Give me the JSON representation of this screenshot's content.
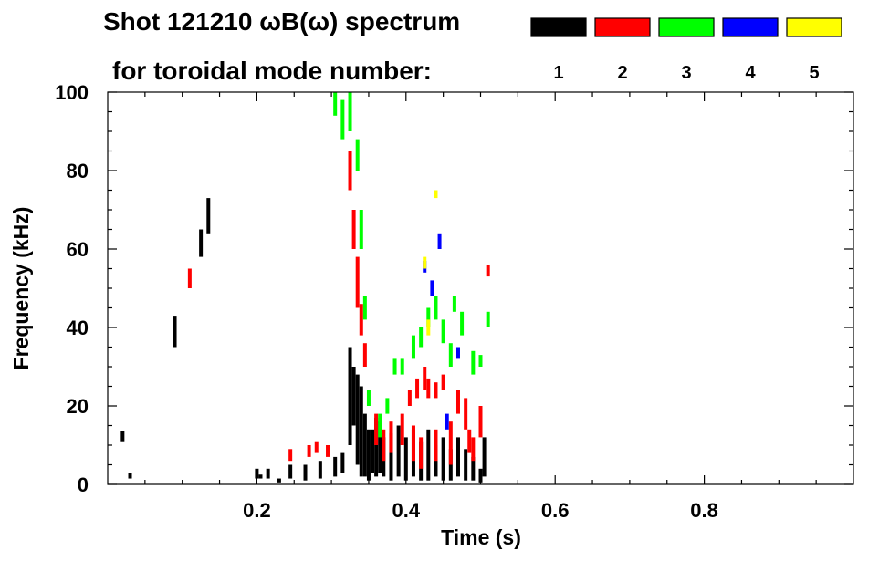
{
  "header": {
    "title": "Shot 121210 ωB(ω) spectrum",
    "subtitle": "for toroidal mode number:"
  },
  "chart_data": {
    "type": "scatter",
    "title": "Shot 121210 ωB(ω) spectrum",
    "subtitle": "for toroidal mode number:",
    "xlabel": "Time (s)",
    "ylabel": "Frequency (kHz)",
    "xlim": [
      0.0,
      1.0
    ],
    "ylim": [
      0,
      100
    ],
    "x_ticks": [
      0.2,
      0.4,
      0.6,
      0.8
    ],
    "x_tick_labels": [
      "0.2",
      "0.4",
      "0.6",
      "0.8"
    ],
    "y_ticks": [
      0,
      20,
      40,
      60,
      80,
      100
    ],
    "y_tick_labels": [
      "0",
      "20",
      "40",
      "60",
      "80",
      "100"
    ],
    "grid": false,
    "legend": {
      "placement": "top-right",
      "label": "for toroidal mode number:",
      "entries": [
        {
          "label": "1",
          "color": "#000000"
        },
        {
          "label": "2",
          "color": "#ff0000"
        },
        {
          "label": "3",
          "color": "#00ff00"
        },
        {
          "label": "4",
          "color": "#0000ff"
        },
        {
          "label": "5",
          "color": "#ffff00"
        }
      ]
    },
    "series": [
      {
        "name": "1",
        "color": "#000000",
        "segments": [
          {
            "t": 0.02,
            "f0": 11,
            "f1": 13.5
          },
          {
            "t": 0.03,
            "f0": 1.5,
            "f1": 3
          },
          {
            "t": 0.09,
            "f0": 35,
            "f1": 43
          },
          {
            "t": 0.125,
            "f0": 58,
            "f1": 65
          },
          {
            "t": 0.135,
            "f0": 64,
            "f1": 73
          },
          {
            "t": 0.205,
            "f0": 1.5,
            "f1": 2.5
          },
          {
            "t": 0.23,
            "f0": 0.5,
            "f1": 1.5
          },
          {
            "t": 0.2,
            "f0": 1.5,
            "f1": 4
          },
          {
            "t": 0.215,
            "f0": 1.5,
            "f1": 4
          },
          {
            "t": 0.245,
            "f0": 1.5,
            "f1": 5
          },
          {
            "t": 0.265,
            "f0": 1,
            "f1": 5
          },
          {
            "t": 0.285,
            "f0": 1.5,
            "f1": 6
          },
          {
            "t": 0.305,
            "f0": 2,
            "f1": 7
          },
          {
            "t": 0.315,
            "f0": 3,
            "f1": 8
          },
          {
            "t": 0.325,
            "f0": 10,
            "f1": 35
          },
          {
            "t": 0.33,
            "f0": 15,
            "f1": 30
          },
          {
            "t": 0.335,
            "f0": 5,
            "f1": 28
          },
          {
            "t": 0.34,
            "f0": 2,
            "f1": 25
          },
          {
            "t": 0.345,
            "f0": 2,
            "f1": 18
          },
          {
            "t": 0.35,
            "f0": 1,
            "f1": 14
          },
          {
            "t": 0.355,
            "f0": 3,
            "f1": 14
          },
          {
            "t": 0.36,
            "f0": 2,
            "f1": 17
          },
          {
            "t": 0.365,
            "f0": 3,
            "f1": 16
          },
          {
            "t": 0.37,
            "f0": 2,
            "f1": 12
          },
          {
            "t": 0.38,
            "f0": 1,
            "f1": 13
          },
          {
            "t": 0.39,
            "f0": 2,
            "f1": 15
          },
          {
            "t": 0.4,
            "f0": 1,
            "f1": 12
          },
          {
            "t": 0.41,
            "f0": 2,
            "f1": 14
          },
          {
            "t": 0.42,
            "f0": 1,
            "f1": 11
          },
          {
            "t": 0.43,
            "f0": 1,
            "f1": 14
          },
          {
            "t": 0.44,
            "f0": 2,
            "f1": 10
          },
          {
            "t": 0.45,
            "f0": 1,
            "f1": 12
          },
          {
            "t": 0.46,
            "f0": 1,
            "f1": 9
          },
          {
            "t": 0.47,
            "f0": 2,
            "f1": 12
          },
          {
            "t": 0.48,
            "f0": 1,
            "f1": 9
          },
          {
            "t": 0.49,
            "f0": 1,
            "f1": 7
          },
          {
            "t": 0.5,
            "f0": 0.5,
            "f1": 4
          },
          {
            "t": 0.505,
            "f0": 2,
            "f1": 12
          }
        ]
      },
      {
        "name": "2",
        "color": "#ff0000",
        "segments": [
          {
            "t": 0.11,
            "f0": 50,
            "f1": 55
          },
          {
            "t": 0.245,
            "f0": 6,
            "f1": 9
          },
          {
            "t": 0.27,
            "f0": 7,
            "f1": 10
          },
          {
            "t": 0.28,
            "f0": 8,
            "f1": 11
          },
          {
            "t": 0.295,
            "f0": 7,
            "f1": 10
          },
          {
            "t": 0.325,
            "f0": 75,
            "f1": 85
          },
          {
            "t": 0.33,
            "f0": 60,
            "f1": 70
          },
          {
            "t": 0.335,
            "f0": 45,
            "f1": 58
          },
          {
            "t": 0.34,
            "f0": 38,
            "f1": 46
          },
          {
            "t": 0.345,
            "f0": 30,
            "f1": 36
          },
          {
            "t": 0.36,
            "f0": 10,
            "f1": 18
          },
          {
            "t": 0.37,
            "f0": 6,
            "f1": 14
          },
          {
            "t": 0.38,
            "f0": 8,
            "f1": 16
          },
          {
            "t": 0.395,
            "f0": 10,
            "f1": 18
          },
          {
            "t": 0.405,
            "f0": 20,
            "f1": 24
          },
          {
            "t": 0.415,
            "f0": 22,
            "f1": 27
          },
          {
            "t": 0.425,
            "f0": 24,
            "f1": 30
          },
          {
            "t": 0.43,
            "f0": 22,
            "f1": 27
          },
          {
            "t": 0.44,
            "f0": 22,
            "f1": 26
          },
          {
            "t": 0.45,
            "f0": 24,
            "f1": 28
          },
          {
            "t": 0.41,
            "f0": 6,
            "f1": 15
          },
          {
            "t": 0.42,
            "f0": 4,
            "f1": 12
          },
          {
            "t": 0.44,
            "f0": 6,
            "f1": 14
          },
          {
            "t": 0.46,
            "f0": 5,
            "f1": 16
          },
          {
            "t": 0.47,
            "f0": 18,
            "f1": 24
          },
          {
            "t": 0.48,
            "f0": 14,
            "f1": 22
          },
          {
            "t": 0.485,
            "f0": 8,
            "f1": 14
          },
          {
            "t": 0.49,
            "f0": 6,
            "f1": 12
          },
          {
            "t": 0.5,
            "f0": 12,
            "f1": 20
          },
          {
            "t": 0.51,
            "f0": 53,
            "f1": 56
          }
        ]
      },
      {
        "name": "3",
        "color": "#00ff00",
        "segments": [
          {
            "t": 0.305,
            "f0": 94,
            "f1": 100
          },
          {
            "t": 0.315,
            "f0": 88,
            "f1": 98
          },
          {
            "t": 0.325,
            "f0": 90,
            "f1": 100
          },
          {
            "t": 0.335,
            "f0": 80,
            "f1": 88
          },
          {
            "t": 0.34,
            "f0": 60,
            "f1": 70
          },
          {
            "t": 0.345,
            "f0": 42,
            "f1": 48
          },
          {
            "t": 0.35,
            "f0": 20,
            "f1": 24
          },
          {
            "t": 0.365,
            "f0": 12,
            "f1": 18
          },
          {
            "t": 0.375,
            "f0": 18,
            "f1": 22
          },
          {
            "t": 0.385,
            "f0": 28,
            "f1": 32
          },
          {
            "t": 0.395,
            "f0": 28,
            "f1": 32
          },
          {
            "t": 0.41,
            "f0": 32,
            "f1": 38
          },
          {
            "t": 0.42,
            "f0": 35,
            "f1": 40
          },
          {
            "t": 0.43,
            "f0": 40,
            "f1": 45
          },
          {
            "t": 0.44,
            "f0": 42,
            "f1": 48
          },
          {
            "t": 0.45,
            "f0": 36,
            "f1": 42
          },
          {
            "t": 0.46,
            "f0": 30,
            "f1": 36
          },
          {
            "t": 0.465,
            "f0": 44,
            "f1": 48
          },
          {
            "t": 0.475,
            "f0": 38,
            "f1": 44
          },
          {
            "t": 0.49,
            "f0": 28,
            "f1": 34
          },
          {
            "t": 0.5,
            "f0": 30,
            "f1": 33
          },
          {
            "t": 0.51,
            "f0": 40,
            "f1": 44
          }
        ]
      },
      {
        "name": "4",
        "color": "#0000ff",
        "segments": [
          {
            "t": 0.425,
            "f0": 54,
            "f1": 57
          },
          {
            "t": 0.435,
            "f0": 48,
            "f1": 52
          },
          {
            "t": 0.445,
            "f0": 60,
            "f1": 64
          },
          {
            "t": 0.455,
            "f0": 14,
            "f1": 18
          },
          {
            "t": 0.47,
            "f0": 32,
            "f1": 35
          }
        ]
      },
      {
        "name": "5",
        "color": "#ffff00",
        "segments": [
          {
            "t": 0.43,
            "f0": 38,
            "f1": 42
          },
          {
            "t": 0.44,
            "f0": 73,
            "f1": 75
          },
          {
            "t": 0.425,
            "f0": 55,
            "f1": 58
          }
        ]
      }
    ]
  }
}
